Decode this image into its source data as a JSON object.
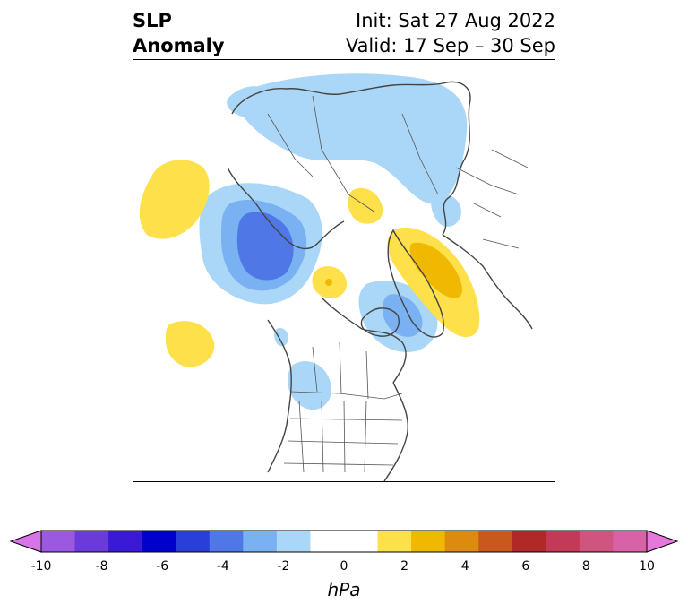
{
  "title": {
    "line1": "SLP",
    "line2": "Anomaly"
  },
  "valid": {
    "init": "Init: Sat 27 Aug 2022",
    "range": "Valid: 17 Sep – 30 Sep"
  },
  "colorbar": {
    "units": "hPa",
    "ticks": [
      "-10",
      "-8",
      "-6",
      "-4",
      "-2",
      "0",
      "2",
      "4",
      "6",
      "8",
      "10"
    ],
    "colors": [
      "#d873e8",
      "#9b59e2",
      "#6a3bd8",
      "#3b1ad6",
      "#0000cc",
      "#2a3fd8",
      "#4f78e6",
      "#79b1f2",
      "#aad7f8",
      "#ffffff",
      "#ffffff",
      "#fde04a",
      "#f0b800",
      "#dd8a10",
      "#c9581c",
      "#b02828",
      "#c23a58",
      "#cf5580",
      "#d862a8",
      "#e678dc"
    ]
  },
  "map": {
    "projection": "north-polar-stereographic",
    "anomaly_colors": {
      "light_blue": "#aad7f8",
      "mid_blue": "#79b1f2",
      "dark_blue": "#4f78e6",
      "yellow": "#fde04a",
      "gold": "#f0b800"
    }
  }
}
